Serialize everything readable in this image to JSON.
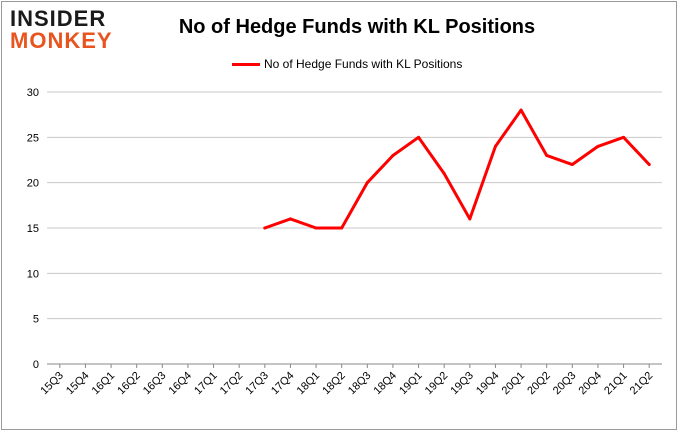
{
  "logo": {
    "line1": "INSIDER",
    "line2": "MONKEY"
  },
  "colors": {
    "series": "#ff0000",
    "grid": "#c8c8c8",
    "logo_top": "#1a1a1a",
    "logo_bottom": "#e8541f"
  },
  "chart_data": {
    "type": "line",
    "title": "No of Hedge Funds with KL Positions",
    "xlabel": "",
    "ylabel": "",
    "ylim": [
      0,
      30
    ],
    "yticks": [
      0,
      5,
      10,
      15,
      20,
      25,
      30
    ],
    "grid": true,
    "legend_position": "top-center",
    "categories": [
      "15Q3",
      "15Q4",
      "16Q1",
      "16Q2",
      "16Q3",
      "16Q4",
      "17Q1",
      "17Q2",
      "17Q3",
      "17Q4",
      "18Q1",
      "18Q2",
      "18Q3",
      "18Q4",
      "19Q1",
      "19Q2",
      "19Q3",
      "19Q4",
      "20Q1",
      "20Q2",
      "20Q3",
      "20Q4",
      "21Q1",
      "21Q2"
    ],
    "series": [
      {
        "name": "No of Hedge Funds with KL Positions",
        "color": "#ff0000",
        "values": [
          null,
          null,
          null,
          null,
          null,
          null,
          null,
          null,
          15,
          16,
          15,
          15,
          20,
          23,
          25,
          21,
          16,
          24,
          28,
          23,
          22,
          24,
          25,
          22
        ]
      }
    ]
  }
}
